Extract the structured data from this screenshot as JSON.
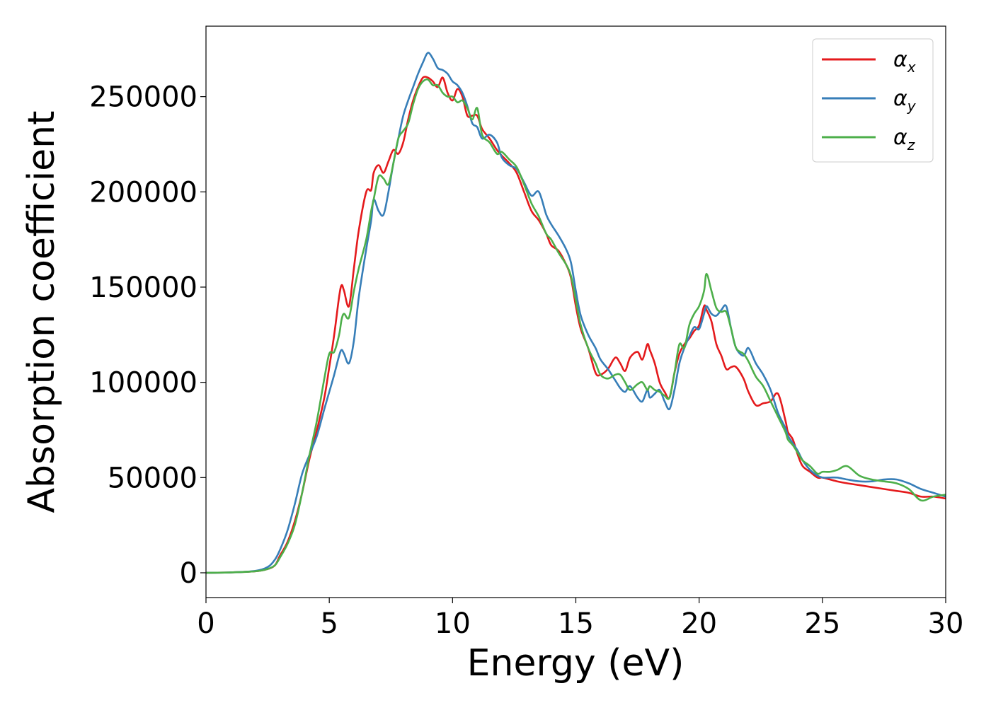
{
  "chart_data": {
    "type": "line",
    "title": "",
    "xlabel": "Energy (eV)",
    "ylabel": "Absorption coefficient",
    "xlim": [
      0,
      30
    ],
    "ylim": [
      -13000,
      287000
    ],
    "xticks": [
      0,
      5,
      10,
      15,
      20,
      25,
      30
    ],
    "xtick_labels": [
      "0",
      "5",
      "10",
      "15",
      "20",
      "25",
      "30"
    ],
    "yticks": [
      0,
      50000,
      100000,
      150000,
      200000,
      250000
    ],
    "ytick_labels": [
      "0",
      "50000",
      "100000",
      "150000",
      "200000",
      "250000"
    ],
    "grid": false,
    "legend_position": "top-right",
    "series": [
      {
        "name": "αx",
        "symbol": "α",
        "subscript": "x",
        "color": "#e41a1c",
        "x": [
          0,
          1,
          2,
          2.5,
          2.8,
          3,
          3.3,
          3.6,
          3.9,
          4.2,
          4.5,
          4.8,
          5,
          5.2,
          5.4,
          5.5,
          5.6,
          5.8,
          6,
          6.2,
          6.5,
          6.7,
          6.8,
          7,
          7.2,
          7.4,
          7.6,
          7.8,
          8,
          8.2,
          8.4,
          8.6,
          8.8,
          9,
          9.2,
          9.4,
          9.6,
          9.8,
          10,
          10.2,
          10.4,
          10.6,
          10.8,
          11,
          11.2,
          11.5,
          11.8,
          12,
          12.3,
          12.6,
          12.9,
          13.2,
          13.5,
          13.8,
          14,
          14.3,
          14.6,
          14.8,
          15,
          15.2,
          15.5,
          15.8,
          16,
          16.3,
          16.6,
          16.8,
          17,
          17.2,
          17.5,
          17.7,
          17.9,
          18,
          18.2,
          18.4,
          18.6,
          18.8,
          19,
          19.2,
          19.4,
          19.6,
          19.8,
          20,
          20.2,
          20.3,
          20.5,
          20.7,
          20.9,
          21.1,
          21.3,
          21.5,
          21.8,
          22,
          22.3,
          22.6,
          22.9,
          23.2,
          23.5,
          23.6,
          23.8,
          24,
          24.2,
          24.5,
          24.8,
          25,
          25.3,
          25.6,
          26,
          26.5,
          27,
          27.5,
          28,
          28.5,
          29,
          29.5,
          30
        ],
        "y": [
          0,
          200,
          800,
          2000,
          4000,
          9000,
          16000,
          27000,
          42000,
          60000,
          75000,
          92000,
          108000,
          125000,
          145000,
          151000,
          148000,
          140000,
          160000,
          180000,
          200000,
          201000,
          210000,
          214000,
          210000,
          216000,
          222000,
          220000,
          226000,
          238000,
          248000,
          255000,
          260000,
          260000,
          258000,
          255000,
          260000,
          252000,
          248000,
          254000,
          250000,
          240000,
          240000,
          240000,
          233000,
          228000,
          222000,
          219000,
          215000,
          210000,
          200000,
          190000,
          185000,
          178000,
          172000,
          169000,
          162000,
          155000,
          140000,
          128000,
          118000,
          105000,
          104000,
          107000,
          113000,
          110000,
          106000,
          113000,
          116000,
          112000,
          120000,
          117000,
          110000,
          100000,
          95000,
          92000,
          105000,
          115000,
          120000,
          123000,
          127000,
          130000,
          140000,
          138000,
          132000,
          120000,
          114000,
          107000,
          108000,
          108000,
          102000,
          95000,
          88000,
          89000,
          90000,
          94000,
          80000,
          74000,
          70000,
          62000,
          56000,
          53000,
          50000,
          50000,
          49000,
          48000,
          47000,
          46000,
          45000,
          44000,
          43000,
          42000,
          40000,
          40000,
          39000
        ]
      },
      {
        "name": "αy",
        "symbol": "α",
        "subscript": "y",
        "color": "#377eb8",
        "x": [
          0,
          1,
          2,
          2.5,
          2.8,
          3,
          3.3,
          3.6,
          3.9,
          4.2,
          4.5,
          4.8,
          5,
          5.2,
          5.4,
          5.5,
          5.6,
          5.8,
          6,
          6.2,
          6.5,
          6.7,
          6.8,
          7,
          7.2,
          7.4,
          7.6,
          7.8,
          8,
          8.2,
          8.4,
          8.6,
          8.8,
          9,
          9.2,
          9.4,
          9.6,
          9.8,
          10,
          10.2,
          10.4,
          10.6,
          10.8,
          11,
          11.2,
          11.5,
          11.8,
          12,
          12.3,
          12.6,
          12.9,
          13.2,
          13.5,
          13.8,
          14,
          14.3,
          14.6,
          14.8,
          15,
          15.2,
          15.5,
          15.8,
          16,
          16.3,
          16.6,
          16.8,
          17,
          17.2,
          17.5,
          17.7,
          17.9,
          18,
          18.2,
          18.4,
          18.6,
          18.8,
          19,
          19.2,
          19.4,
          19.6,
          19.8,
          20,
          20.2,
          20.3,
          20.5,
          20.7,
          20.9,
          21.1,
          21.3,
          21.5,
          21.8,
          22,
          22.3,
          22.6,
          22.9,
          23.2,
          23.5,
          23.6,
          23.8,
          24,
          24.2,
          24.5,
          24.8,
          25,
          25.3,
          25.6,
          26,
          26.5,
          27,
          27.5,
          28,
          28.5,
          29,
          29.5,
          30
        ],
        "y": [
          0,
          200,
          1000,
          3000,
          7000,
          12000,
          22000,
          36000,
          52000,
          62000,
          72000,
          86000,
          95000,
          104000,
          114000,
          117000,
          115000,
          110000,
          122000,
          145000,
          170000,
          185000,
          196000,
          190000,
          188000,
          200000,
          215000,
          228000,
          240000,
          248000,
          255000,
          262000,
          268000,
          273000,
          270000,
          265000,
          264000,
          262000,
          258000,
          256000,
          252000,
          245000,
          236000,
          234000,
          228000,
          230000,
          226000,
          218000,
          214000,
          212000,
          205000,
          198000,
          200000,
          188000,
          183000,
          177000,
          170000,
          163000,
          148000,
          135000,
          125000,
          118000,
          112000,
          107000,
          101000,
          97000,
          95000,
          98000,
          92000,
          90000,
          96000,
          92000,
          94000,
          96000,
          90000,
          86000,
          96000,
          110000,
          118000,
          124000,
          129000,
          128000,
          136000,
          140000,
          136000,
          135000,
          138000,
          140000,
          128000,
          118000,
          114000,
          118000,
          110000,
          104000,
          96000,
          84000,
          76000,
          72000,
          68000,
          64000,
          59000,
          54000,
          51000,
          50000,
          50000,
          50000,
          49000,
          48000,
          48000,
          49000,
          49000,
          47000,
          44000,
          42000,
          40000
        ]
      },
      {
        "name": "αz",
        "symbol": "α",
        "subscript": "z",
        "color": "#4daf4a",
        "x": [
          0,
          1,
          2,
          2.5,
          2.8,
          3,
          3.3,
          3.6,
          3.9,
          4.2,
          4.5,
          4.8,
          5,
          5.2,
          5.4,
          5.5,
          5.6,
          5.8,
          6,
          6.2,
          6.5,
          6.7,
          6.8,
          7,
          7.2,
          7.4,
          7.6,
          7.8,
          8,
          8.2,
          8.4,
          8.6,
          8.8,
          9,
          9.2,
          9.4,
          9.6,
          9.8,
          10,
          10.2,
          10.4,
          10.6,
          10.8,
          11,
          11.2,
          11.5,
          11.8,
          12,
          12.3,
          12.6,
          12.9,
          13.2,
          13.5,
          13.8,
          14,
          14.3,
          14.6,
          14.8,
          15,
          15.2,
          15.5,
          15.8,
          16,
          16.3,
          16.6,
          16.8,
          17,
          17.2,
          17.5,
          17.7,
          17.9,
          18,
          18.2,
          18.4,
          18.6,
          18.8,
          19,
          19.2,
          19.4,
          19.6,
          19.8,
          20,
          20.2,
          20.3,
          20.5,
          20.7,
          20.9,
          21.1,
          21.3,
          21.5,
          21.8,
          22,
          22.3,
          22.6,
          22.9,
          23.2,
          23.5,
          23.6,
          23.8,
          24,
          24.2,
          24.5,
          24.8,
          25,
          25.3,
          25.6,
          26,
          26.5,
          27,
          27.5,
          28,
          28.5,
          29,
          29.5,
          30
        ],
        "y": [
          0,
          200,
          800,
          2000,
          4000,
          8000,
          15000,
          25000,
          42000,
          62000,
          80000,
          102000,
          115000,
          116000,
          125000,
          133000,
          136000,
          134000,
          148000,
          160000,
          175000,
          190000,
          196000,
          208000,
          207000,
          204000,
          215000,
          228000,
          232000,
          236000,
          246000,
          254000,
          258000,
          259000,
          256000,
          256000,
          252000,
          250000,
          250000,
          247000,
          248000,
          244000,
          238000,
          244000,
          230000,
          226000,
          220000,
          221000,
          217000,
          213000,
          204000,
          194000,
          187000,
          178000,
          175000,
          168000,
          162000,
          156000,
          143000,
          130000,
          118000,
          110000,
          104000,
          102000,
          104000,
          104000,
          100000,
          96000,
          99000,
          100000,
          96000,
          98000,
          96000,
          95000,
          93000,
          92000,
          105000,
          120000,
          118000,
          130000,
          136000,
          140000,
          148000,
          157000,
          148000,
          139000,
          137000,
          137000,
          128000,
          118000,
          115000,
          111000,
          103000,
          98000,
          90000,
          82000,
          74000,
          70000,
          67000,
          63000,
          59000,
          56000,
          52000,
          53000,
          53000,
          54000,
          56000,
          51000,
          49000,
          48000,
          47000,
          44000,
          38000,
          40000,
          41000
        ]
      }
    ]
  }
}
